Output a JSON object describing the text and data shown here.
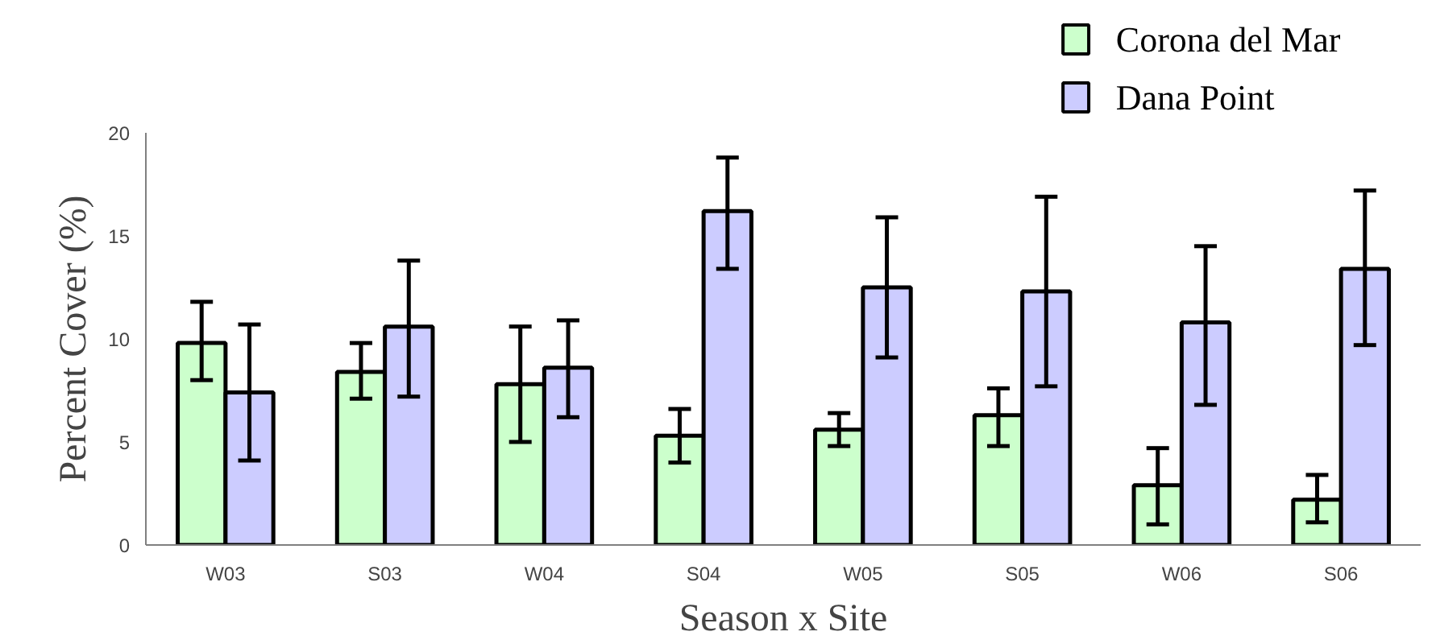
{
  "chart_data": {
    "type": "bar",
    "xlabel": "Season x Site",
    "ylabel": "Percent Cover (%)",
    "categories": [
      "W03",
      "S03",
      "W04",
      "S04",
      "W05",
      "S05",
      "W06",
      "S06"
    ],
    "series": [
      {
        "name": "Corona del Mar",
        "color": "#ccffcc",
        "values": [
          9.8,
          8.4,
          7.8,
          5.3,
          5.6,
          6.3,
          2.9,
          2.2
        ],
        "errors": [
          [
            8.0,
            11.8
          ],
          [
            7.1,
            9.8
          ],
          [
            5.0,
            10.6
          ],
          [
            4.0,
            6.6
          ],
          [
            4.8,
            6.4
          ],
          [
            4.8,
            7.6
          ],
          [
            1.0,
            4.7
          ],
          [
            1.1,
            3.4
          ]
        ]
      },
      {
        "name": "Dana Point",
        "color": "#ccccff",
        "values": [
          7.4,
          10.6,
          8.6,
          16.2,
          12.5,
          12.3,
          10.8,
          13.4
        ],
        "errors": [
          [
            4.1,
            10.7
          ],
          [
            7.2,
            13.8
          ],
          [
            6.2,
            10.9
          ],
          [
            13.4,
            18.8
          ],
          [
            9.1,
            15.9
          ],
          [
            7.7,
            16.9
          ],
          [
            6.8,
            14.5
          ],
          [
            9.7,
            17.2
          ]
        ]
      }
    ],
    "ylim": [
      0,
      20
    ],
    "yticks": [
      0,
      5,
      10,
      15,
      20
    ],
    "grid": false,
    "legend": "top right"
  }
}
